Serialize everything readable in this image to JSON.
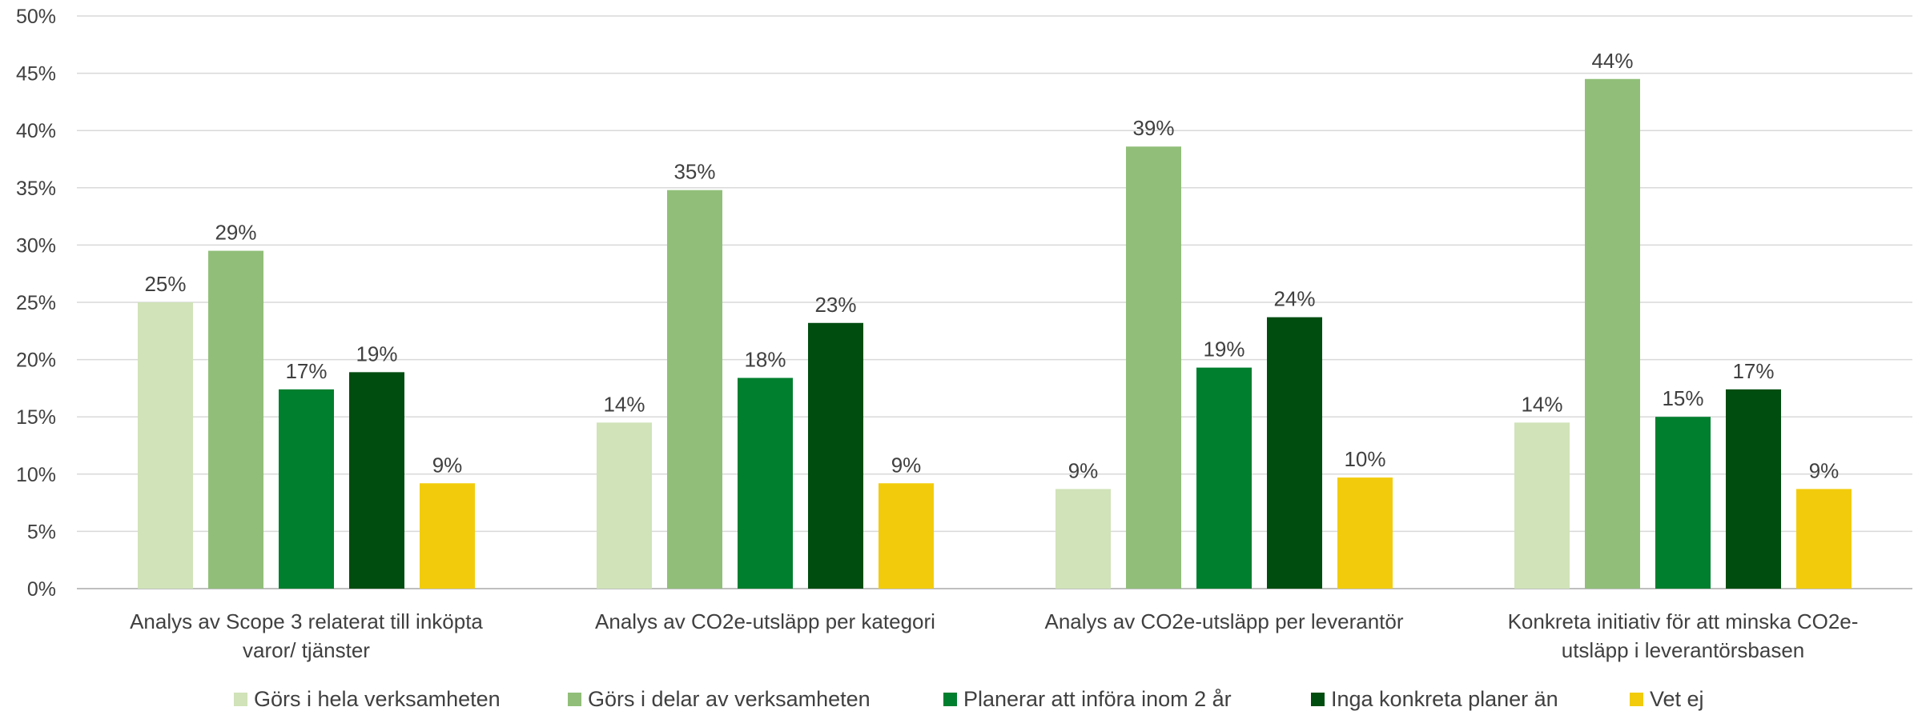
{
  "chart_data": {
    "type": "bar",
    "title": "",
    "xlabel": "",
    "ylabel": "",
    "ylim": [
      0,
      50
    ],
    "ytick_step": 5,
    "ytick_suffix": "%",
    "grid": true,
    "legend_position": "bottom",
    "categories": [
      [
        "Analys av Scope 3 relaterat till inköpta",
        "varor/ tjänster"
      ],
      [
        "Analys av CO2e-utsläpp per kategori"
      ],
      [
        "Analys av CO2e-utsläpp per leverantör"
      ],
      [
        "Konkreta initiativ för att minska CO2e-",
        "utsläpp i leverantörsbasen"
      ]
    ],
    "series": [
      {
        "name": "Görs i hela verksamheten",
        "color": "#d0e3b9",
        "values": [
          25,
          14.5,
          8.7,
          14.5
        ],
        "labels": [
          "25%",
          "14%",
          "9%",
          "14%"
        ]
      },
      {
        "name": "Görs i delar av verksamheten",
        "color": "#91bf79",
        "values": [
          29.5,
          34.8,
          38.6,
          44.5
        ],
        "labels": [
          "29%",
          "35%",
          "39%",
          "44%"
        ]
      },
      {
        "name": "Planerar att införa inom 2 år",
        "color": "#007f2e",
        "values": [
          17.4,
          18.4,
          19.3,
          15
        ],
        "labels": [
          "17%",
          "18%",
          "19%",
          "15%"
        ]
      },
      {
        "name": "Inga konkreta planer än",
        "color": "#004d10",
        "values": [
          18.9,
          23.2,
          23.7,
          17.4
        ],
        "labels": [
          "19%",
          "23%",
          "24%",
          "17%"
        ]
      },
      {
        "name": "Vet ej",
        "color": "#f2cc0c",
        "values": [
          9.2,
          9.2,
          9.7,
          8.7
        ],
        "labels": [
          "9%",
          "9%",
          "10%",
          "9%"
        ]
      }
    ]
  }
}
